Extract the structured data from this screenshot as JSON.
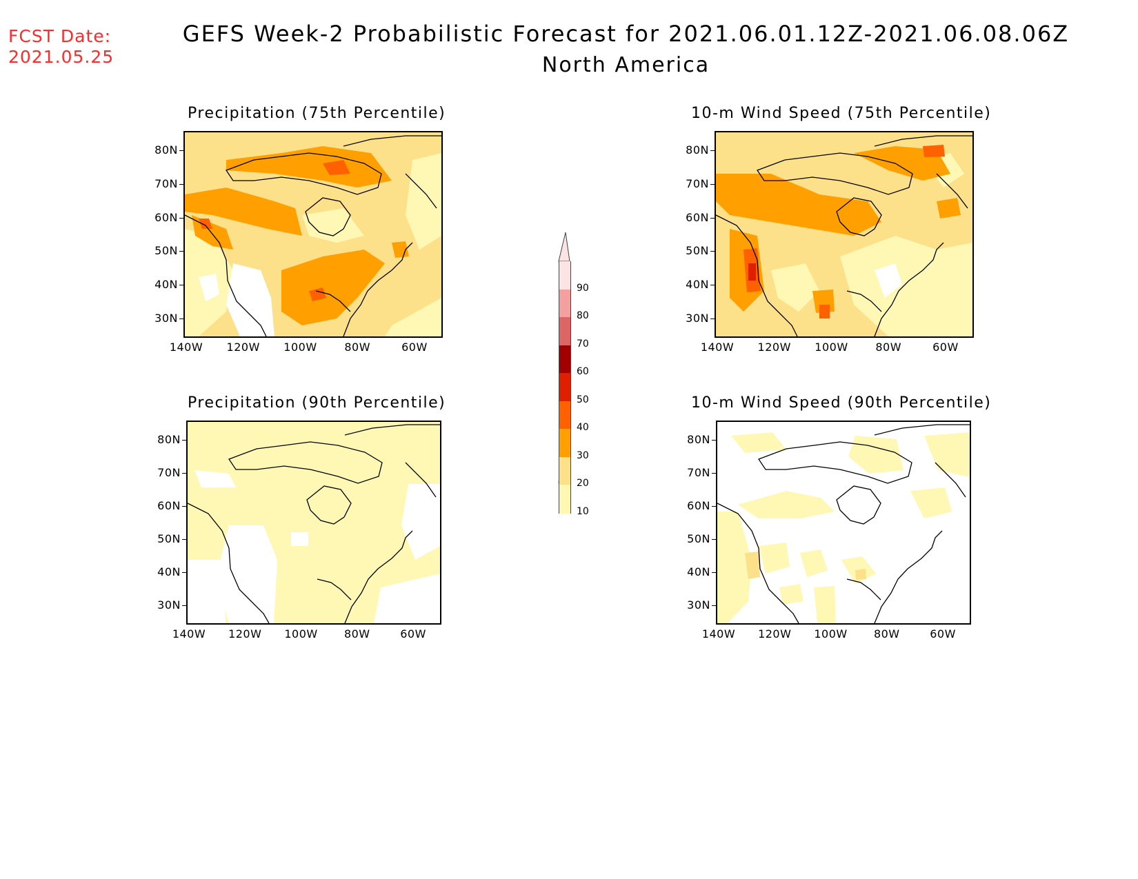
{
  "header": {
    "fcst_label": "FCST Date:",
    "fcst_date": "2021.05.25",
    "title": "GEFS Week-2 Probabilistic Forecast for 2021.06.01.12Z-2021.06.08.06Z",
    "subtitle": "North America"
  },
  "axes": {
    "lat_labels": [
      "80N",
      "70N",
      "60N",
      "50N",
      "40N",
      "30N"
    ],
    "lon_labels": [
      "140W",
      "120W",
      "100W",
      "80W",
      "60W"
    ]
  },
  "panels": [
    {
      "id": "precip75",
      "title": "Precipitation (75th Percentile)",
      "level": "high"
    },
    {
      "id": "wind75",
      "title": "10-m Wind Speed (75th Percentile)",
      "level": "high"
    },
    {
      "id": "precip90",
      "title": "Precipitation (90th Percentile)",
      "level": "low"
    },
    {
      "id": "wind90",
      "title": "10-m Wind Speed (90th Percentile)",
      "level": "low"
    }
  ],
  "colorbar": {
    "labels": [
      "90",
      "80",
      "70",
      "60",
      "50",
      "40",
      "30",
      "20",
      "10"
    ],
    "colors": [
      "#fde4e4",
      "#f2a0a0",
      "#dd6565",
      "#a00000",
      "#e01e00",
      "#ff6000",
      "#ffa000",
      "#fde08a",
      "#fff8b4"
    ]
  }
}
